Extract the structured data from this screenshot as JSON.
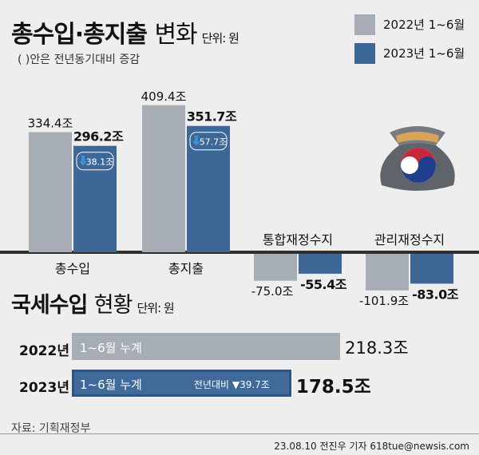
{
  "header": {
    "title": "총수입·총지출",
    "title_suffix": "변화",
    "unit": "단위: 원",
    "note": "( )안은 전년동기대비 증감"
  },
  "legend": [
    {
      "label": "2022년 1~6월",
      "color": "#a7adb4"
    },
    {
      "label": "2023년 1~6월",
      "color": "#3c6797"
    }
  ],
  "colors": {
    "bar2022": "#a7adb4",
    "bar2023": "#3c6797",
    "hbar2022": "#a7adb4",
    "hbar2023": "#3f6a9a",
    "axis": "#2f2f2f",
    "down_arrow": "#3f8fd1"
  },
  "chart_data": [
    {
      "type": "bar",
      "title": "총수입·총지출 변화",
      "unit": "원",
      "categories": [
        "총수입",
        "총지출",
        "통합재정수지",
        "관리재정수지"
      ],
      "series": [
        {
          "name": "2022년 1~6월",
          "values": [
            334.4,
            409.4,
            -75.0,
            -101.9
          ],
          "labels": [
            "334.4조",
            "409.4조",
            "-75.0조",
            "-101.9조"
          ]
        },
        {
          "name": "2023년 1~6월",
          "values": [
            296.2,
            351.7,
            -55.4,
            -83.0
          ],
          "labels": [
            "296.2조",
            "351.7조",
            "-55.4조",
            "-83.0조"
          ]
        }
      ],
      "changes": [
        {
          "category": "총수입",
          "label": "38.1조",
          "direction": "down"
        },
        {
          "category": "총지출",
          "label": "57.7조",
          "direction": "down"
        }
      ],
      "baseline": 0
    },
    {
      "type": "bar",
      "orientation": "horizontal",
      "title": "국세수입 현황",
      "unit": "원",
      "categories": [
        "2022년",
        "2023년"
      ],
      "values": [
        218.3,
        178.5
      ],
      "labels": [
        "218.3조",
        "178.5조"
      ],
      "bar_text": [
        "1~6월 누계",
        "1~6월 누계"
      ],
      "annotation": "전년대비 ▼39.7조"
    }
  ],
  "section2": {
    "title": "국세수입",
    "title_suffix": "현황",
    "unit": "단위: 원"
  },
  "footer": {
    "source": "자료: 기획재정부",
    "credit": "23.08.10 전진우 기자 618tue@newsis.com"
  },
  "icon": {
    "name": "money-bag-icon"
  }
}
